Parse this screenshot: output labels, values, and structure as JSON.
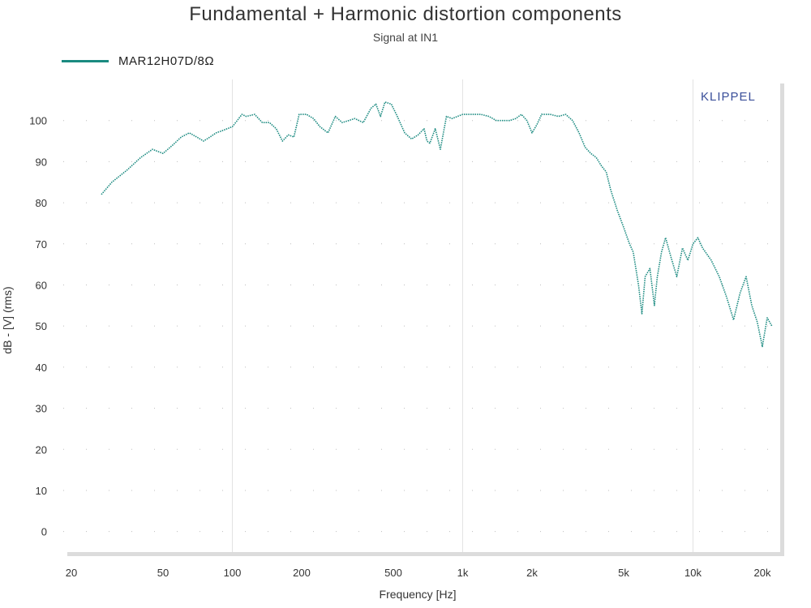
{
  "chart_data": {
    "type": "line",
    "title": "Fundamental + Harmonic distortion components",
    "subtitle": "Signal at IN1",
    "xlabel": "Frequency [Hz]",
    "ylabel": "dB - [V]  (rms)",
    "x_scale": "log",
    "xlim": [
      20,
      20000
    ],
    "ylim": [
      -5,
      110
    ],
    "grid": true,
    "legend_position": "top-left",
    "watermark": "KLIPPEL",
    "x_ticks": [
      {
        "value": 20,
        "label": "20"
      },
      {
        "value": 50,
        "label": "50"
      },
      {
        "value": 100,
        "label": "100"
      },
      {
        "value": 200,
        "label": "200"
      },
      {
        "value": 500,
        "label": "500"
      },
      {
        "value": 1000,
        "label": "1k"
      },
      {
        "value": 2000,
        "label": "2k"
      },
      {
        "value": 5000,
        "label": "5k"
      },
      {
        "value": 10000,
        "label": "10k"
      },
      {
        "value": 20000,
        "label": "20k"
      }
    ],
    "y_ticks": [
      0,
      10,
      20,
      30,
      40,
      50,
      60,
      70,
      80,
      90,
      100
    ],
    "series": [
      {
        "name": "MAR12H07D/8Ω",
        "color": "#1a8a80",
        "points": [
          [
            27,
            82
          ],
          [
            30,
            85
          ],
          [
            35,
            88
          ],
          [
            40,
            91
          ],
          [
            45,
            93
          ],
          [
            50,
            92
          ],
          [
            55,
            94
          ],
          [
            60,
            96
          ],
          [
            65,
            97
          ],
          [
            70,
            96
          ],
          [
            75,
            95
          ],
          [
            80,
            96
          ],
          [
            85,
            97
          ],
          [
            90,
            97.5
          ],
          [
            100,
            98.5
          ],
          [
            105,
            100
          ],
          [
            110,
            101.5
          ],
          [
            115,
            101
          ],
          [
            125,
            101.5
          ],
          [
            135,
            99.5
          ],
          [
            145,
            99.5
          ],
          [
            155,
            98
          ],
          [
            165,
            95
          ],
          [
            175,
            96.5
          ],
          [
            185,
            96
          ],
          [
            195,
            101.5
          ],
          [
            210,
            101.5
          ],
          [
            225,
            100.5
          ],
          [
            240,
            98.5
          ],
          [
            260,
            97
          ],
          [
            280,
            101
          ],
          [
            300,
            99.5
          ],
          [
            320,
            100
          ],
          [
            340,
            100.5
          ],
          [
            370,
            99.5
          ],
          [
            400,
            103
          ],
          [
            420,
            104
          ],
          [
            440,
            101
          ],
          [
            460,
            104.5
          ],
          [
            490,
            104
          ],
          [
            520,
            101
          ],
          [
            560,
            97
          ],
          [
            600,
            95.5
          ],
          [
            640,
            96.5
          ],
          [
            680,
            98
          ],
          [
            700,
            95
          ],
          [
            720,
            94.5
          ],
          [
            760,
            98
          ],
          [
            800,
            93
          ],
          [
            850,
            101
          ],
          [
            900,
            100.5
          ],
          [
            950,
            101
          ],
          [
            1000,
            101.5
          ],
          [
            1100,
            101.5
          ],
          [
            1200,
            101.5
          ],
          [
            1300,
            101
          ],
          [
            1400,
            100
          ],
          [
            1500,
            100
          ],
          [
            1600,
            100
          ],
          [
            1700,
            100.5
          ],
          [
            1800,
            101.5
          ],
          [
            1900,
            100
          ],
          [
            2000,
            97
          ],
          [
            2100,
            99
          ],
          [
            2200,
            101.5
          ],
          [
            2400,
            101.5
          ],
          [
            2600,
            101
          ],
          [
            2800,
            101.5
          ],
          [
            3000,
            100
          ],
          [
            3200,
            97
          ],
          [
            3400,
            93.5
          ],
          [
            3600,
            92
          ],
          [
            3800,
            91
          ],
          [
            4000,
            89
          ],
          [
            4200,
            87.5
          ],
          [
            4400,
            83
          ],
          [
            4700,
            78
          ],
          [
            5000,
            74
          ],
          [
            5300,
            70
          ],
          [
            5500,
            68
          ],
          [
            5800,
            60
          ],
          [
            6000,
            53
          ],
          [
            6200,
            62
          ],
          [
            6500,
            64
          ],
          [
            6800,
            55
          ],
          [
            7000,
            62
          ],
          [
            7300,
            68
          ],
          [
            7600,
            71.5
          ],
          [
            8000,
            67
          ],
          [
            8500,
            62
          ],
          [
            9000,
            69
          ],
          [
            9500,
            66
          ],
          [
            10000,
            70
          ],
          [
            10500,
            71.5
          ],
          [
            11000,
            69
          ],
          [
            12000,
            66
          ],
          [
            13000,
            62
          ],
          [
            14000,
            57
          ],
          [
            15000,
            51.5
          ],
          [
            16000,
            58
          ],
          [
            17000,
            62
          ],
          [
            18000,
            55
          ],
          [
            19000,
            51
          ],
          [
            20000,
            45
          ],
          [
            21000,
            52
          ],
          [
            22000,
            50
          ]
        ]
      }
    ]
  }
}
